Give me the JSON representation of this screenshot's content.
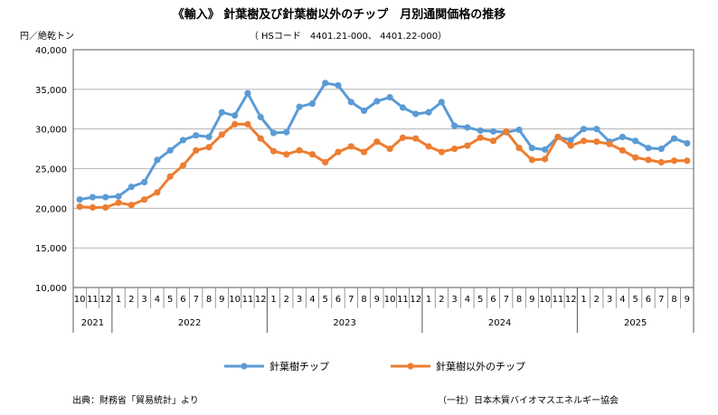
{
  "chart_data": {
    "type": "line",
    "title": "《輸入》 針葉樹及び針葉樹以外のチップ　月別通関価格の推移",
    "subtitle": "（ HSコード　4401.21-000、 4401.22-000）",
    "ylabel": "円／絶乾トン",
    "ylim": [
      10000,
      40000
    ],
    "yticks": [
      {
        "value": 10000,
        "label": "10,000"
      },
      {
        "value": 15000,
        "label": "15,000"
      },
      {
        "value": 20000,
        "label": "20,000"
      },
      {
        "value": 25000,
        "label": "25,000"
      },
      {
        "value": 30000,
        "label": "30,000"
      },
      {
        "value": 35000,
        "label": "35,000"
      },
      {
        "value": 40000,
        "label": "40,000"
      }
    ],
    "categories": [
      "10",
      "11",
      "12",
      "1",
      "2",
      "3",
      "4",
      "5",
      "6",
      "7",
      "8",
      "9",
      "10",
      "11",
      "12",
      "1",
      "2",
      "3",
      "4",
      "5",
      "6",
      "7",
      "8",
      "9",
      "10",
      "11",
      "12",
      "1",
      "2",
      "3",
      "4",
      "5",
      "6",
      "7",
      "8",
      "9",
      "10",
      "11",
      "12",
      "1",
      "2",
      "3",
      "4",
      "5",
      "6",
      "7",
      "8",
      "9"
    ],
    "years": [
      {
        "label": "2021",
        "start": 0,
        "count": 3
      },
      {
        "label": "2022",
        "start": 3,
        "count": 12
      },
      {
        "label": "2023",
        "start": 15,
        "count": 12
      },
      {
        "label": "2024",
        "start": 27,
        "count": 12
      },
      {
        "label": "2025",
        "start": 39,
        "count": 9
      }
    ],
    "series": [
      {
        "name": "針葉樹チップ",
        "color": "#5b9bd5",
        "values": [
          21100,
          21400,
          21400,
          21500,
          22700,
          23300,
          26100,
          27300,
          28600,
          29200,
          29000,
          32100,
          31700,
          34500,
          31500,
          29500,
          29600,
          32800,
          33200,
          35800,
          35500,
          33400,
          32300,
          33500,
          34000,
          32700,
          31900,
          32100,
          33400,
          30400,
          30200,
          29800,
          29700,
          29600,
          29900,
          27600,
          27400,
          29000,
          28600,
          30000,
          30000,
          28400,
          29000,
          28500,
          27600,
          27500,
          28800,
          28200
        ]
      },
      {
        "name": "針葉樹以外のチップ",
        "color": "#ed7d31",
        "values": [
          20200,
          20100,
          20100,
          20700,
          20400,
          21100,
          22000,
          24000,
          25400,
          27300,
          27700,
          29300,
          30600,
          30600,
          28800,
          27200,
          26800,
          27300,
          26800,
          25800,
          27100,
          27800,
          27100,
          28400,
          27500,
          28900,
          28800,
          27800,
          27100,
          27500,
          27900,
          28900,
          28500,
          29700,
          27600,
          26100,
          26200,
          29000,
          27900,
          28500,
          28400,
          28100,
          27300,
          26400,
          26100,
          25800,
          26000,
          26000
        ]
      }
    ]
  },
  "footer": {
    "source": "出典：財務省「貿易統計」より",
    "org": "（一社）日本木質バイオマスエネルギー協会"
  }
}
